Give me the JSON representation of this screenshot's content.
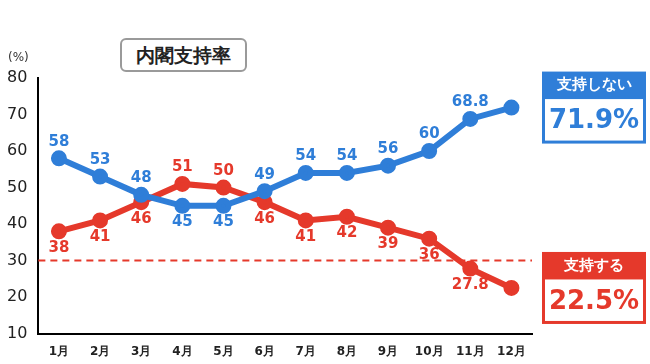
{
  "chart_data": {
    "type": "line",
    "title": "内閣支持率",
    "ylabel": "(%)",
    "categories": [
      "1月",
      "2月",
      "3月",
      "4月",
      "5月",
      "6月",
      "7月",
      "8月",
      "9月",
      "10月",
      "11月",
      "12月"
    ],
    "series": [
      {
        "name": "支持しない",
        "color": "#2f7ed8",
        "marker": "circle",
        "values": [
          58,
          53,
          48,
          45,
          45,
          49,
          54,
          54,
          56,
          60,
          68.8,
          71.9
        ],
        "value_labels": [
          "58",
          "53",
          "48",
          "45",
          "45",
          "49",
          "54",
          "54",
          "56",
          "60",
          "68.8",
          "71.9%"
        ]
      },
      {
        "name": "支持する",
        "color": "#e5392b",
        "marker": "circle",
        "values": [
          38,
          41,
          46,
          51,
          50,
          46,
          41,
          42,
          39,
          36,
          27.8,
          22.5
        ],
        "value_labels": [
          "38",
          "41",
          "46",
          "51",
          "50",
          "46",
          "41",
          "42",
          "39",
          "36",
          "27.8",
          "22.5%"
        ]
      }
    ],
    "ylim": [
      10,
      80
    ],
    "yticks": [
      10,
      20,
      30,
      40,
      50,
      60,
      70,
      80
    ],
    "grid": false,
    "data_labels": true,
    "hlines": [
      {
        "value": 30,
        "color": "#e5392b",
        "line_style": "dashed"
      }
    ]
  }
}
